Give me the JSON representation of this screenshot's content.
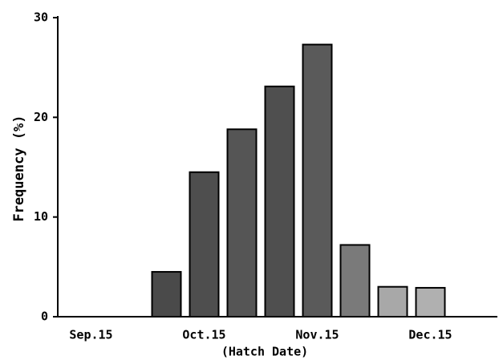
{
  "chart_data": {
    "type": "bar",
    "y_label": "Frequency (%)",
    "x_label": "(Hatch Date)",
    "categories": [
      "Sep.15",
      null,
      null,
      "Oct.15",
      null,
      null,
      "Nov.15",
      null,
      null,
      "Dec.15"
    ],
    "values": [
      null,
      null,
      4.5,
      14.5,
      18.8,
      23.1,
      27.3,
      7.2,
      3.0,
      2.9
    ],
    "colors": [
      null,
      null,
      "#4a4a4a",
      "#4e4e4e",
      "#555555",
      "#4f4f4f",
      "#5a5a5a",
      "#7a7a7a",
      "#a8a8a8",
      "#b0b0b0"
    ],
    "ylim": [
      0,
      30
    ],
    "yticks": [
      0,
      10,
      20,
      30
    ]
  }
}
